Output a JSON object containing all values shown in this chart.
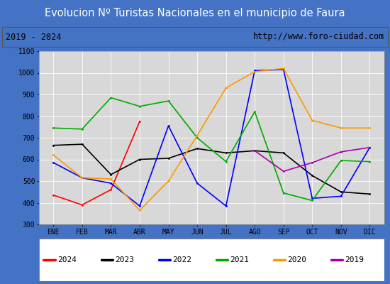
{
  "title": "Evolucion Nº Turistas Nacionales en el municipio de Faura",
  "subtitle_left": "2019 - 2024",
  "subtitle_right": "http://www.foro-ciudad.com",
  "months": [
    "ENE",
    "FEB",
    "MAR",
    "ABR",
    "MAY",
    "JUN",
    "JUL",
    "AGO",
    "SEP",
    "OCT",
    "NOV",
    "DIC"
  ],
  "ylim": [
    300,
    1100
  ],
  "yticks": [
    300,
    400,
    500,
    600,
    700,
    800,
    900,
    1000,
    1100
  ],
  "series": {
    "2024": {
      "color": "#ff0000",
      "data": [
        435,
        390,
        460,
        775,
        null,
        null,
        null,
        null,
        null,
        null,
        null,
        null
      ]
    },
    "2023": {
      "color": "#000000",
      "data": [
        665,
        670,
        530,
        600,
        605,
        650,
        630,
        640,
        630,
        525,
        450,
        440
      ]
    },
    "2022": {
      "color": "#0000ff",
      "data": [
        585,
        515,
        490,
        385,
        755,
        490,
        385,
        1010,
        1015,
        420,
        430,
        655
      ]
    },
    "2021": {
      "color": "#00aa00",
      "data": [
        745,
        740,
        885,
        845,
        870,
        700,
        590,
        820,
        445,
        410,
        595,
        590
      ]
    },
    "2020": {
      "color": "#ff9900",
      "data": [
        620,
        515,
        510,
        365,
        500,
        710,
        930,
        1005,
        1020,
        780,
        745,
        745
      ]
    },
    "2019": {
      "color": "#aa00aa",
      "data": [
        null,
        null,
        null,
        null,
        null,
        null,
        null,
        640,
        545,
        585,
        635,
        655
      ]
    }
  },
  "legend_order": [
    "2024",
    "2023",
    "2022",
    "2021",
    "2020",
    "2019"
  ],
  "title_bg_color": "#4472c4",
  "title_font_color": "white",
  "plot_bg_color": "#d8d8d8",
  "subtitle_bg_color": "#d8d8d8",
  "title_fontsize": 10.5,
  "tick_fontsize": 7,
  "legend_fontsize": 8
}
